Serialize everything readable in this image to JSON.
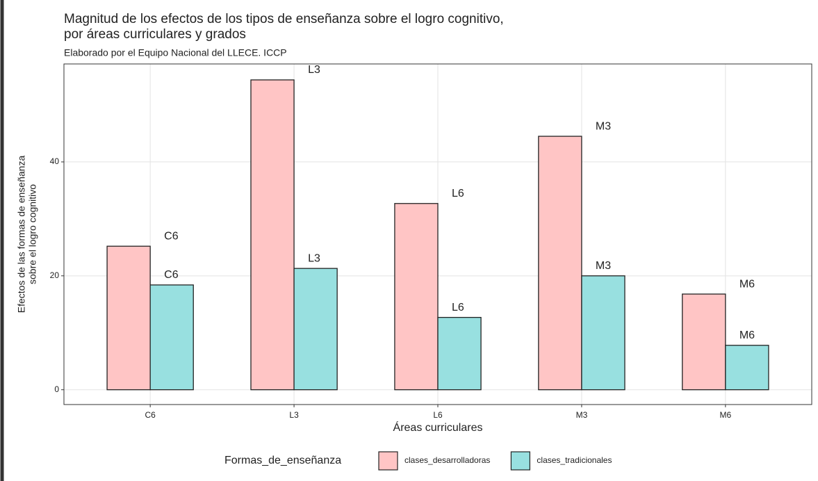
{
  "chart_data": {
    "type": "bar",
    "title": [
      "Magnitud de los efectos de los tipos de enseñanza sobre el logro cognitivo,",
      "por áreas curriculares y grados"
    ],
    "subtitle": "Elaborado por el Equipo Nacional del LLECE. ICCP",
    "x_label": "Áreas curriculares",
    "y_label": [
      "Efectos de las formas de enseñanza",
      "sobre el logro cognitivo"
    ],
    "legend_title": "Formas_de_enseñanza",
    "categories": [
      "C6",
      "L3",
      "L6",
      "M3",
      "M6"
    ],
    "series": [
      {
        "name": "clases_desarrolladoras",
        "color": "#ffc5c5",
        "values": [
          25.2,
          54.4,
          32.7,
          44.5,
          16.8
        ]
      },
      {
        "name": "clases_tradicionales",
        "color": "#98e0e0",
        "values": [
          18.4,
          21.3,
          12.7,
          20.0,
          7.8
        ]
      }
    ],
    "ylim": [
      -2.6,
      57.2
    ],
    "yticks": [
      0,
      20,
      40
    ],
    "grid": true,
    "legend": "bottom"
  }
}
